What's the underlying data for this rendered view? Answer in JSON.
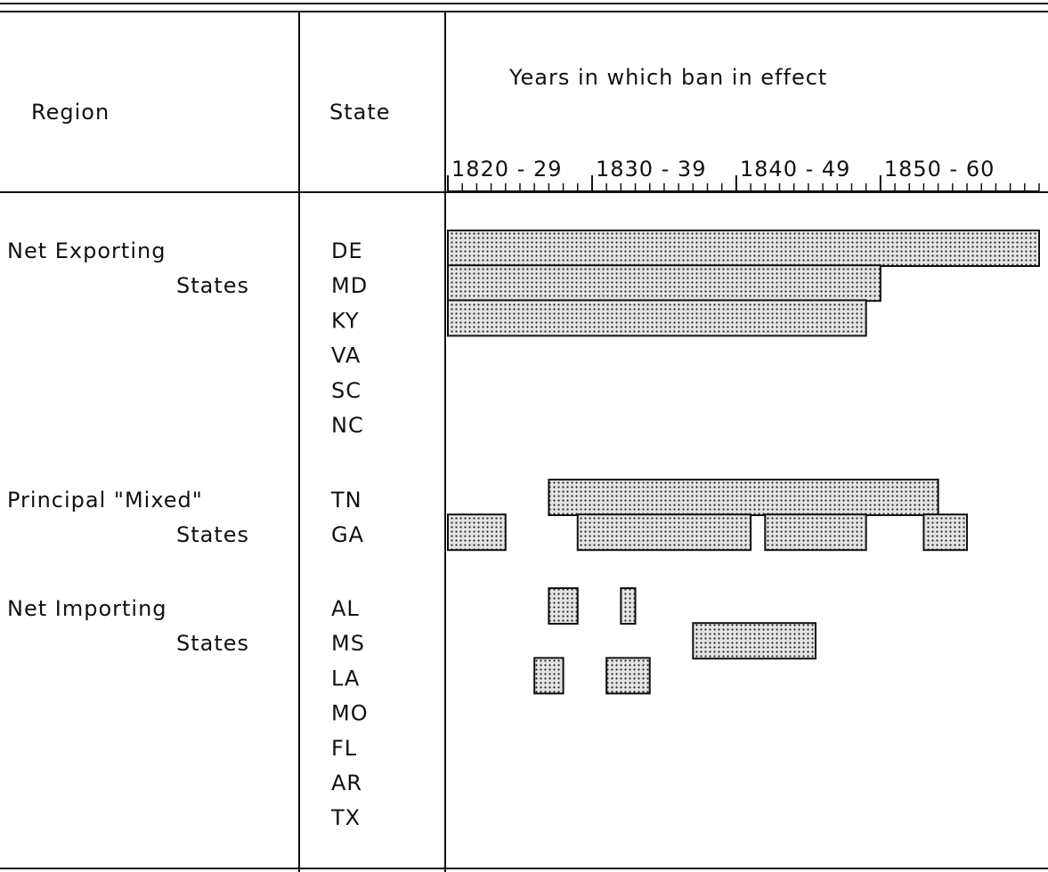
{
  "chart_data": {
    "type": "gantt",
    "column_headers": {
      "region": "Region",
      "state": "State",
      "years": "Years in which ban in effect"
    },
    "xlim": [
      1820,
      1861
    ],
    "xticks": [
      {
        "value": 1820,
        "label": "1820 - 29"
      },
      {
        "value": 1830,
        "label": "1830 - 39"
      },
      {
        "value": 1840,
        "label": "1840 - 49"
      },
      {
        "value": 1850,
        "label": "1850 - 60"
      }
    ],
    "minor_xticks": [
      1821,
      1822,
      1823,
      1824,
      1825,
      1826,
      1827,
      1828,
      1829,
      1831,
      1832,
      1833,
      1834,
      1835,
      1836,
      1837,
      1838,
      1839,
      1841,
      1842,
      1843,
      1844,
      1845,
      1846,
      1847,
      1848,
      1849,
      1851,
      1852,
      1853,
      1854,
      1855,
      1856,
      1857,
      1858,
      1859,
      1860,
      1861
    ],
    "groups": [
      {
        "region": [
          "Net Exporting",
          "States"
        ],
        "states": [
          {
            "name": "DE",
            "bans": [
              [
                1820,
                1861
              ]
            ]
          },
          {
            "name": "MD",
            "bans": [
              [
                1820,
                1850
              ]
            ]
          },
          {
            "name": "KY",
            "bans": [
              [
                1820,
                1849
              ]
            ]
          },
          {
            "name": "VA",
            "bans": []
          },
          {
            "name": "SC",
            "bans": []
          },
          {
            "name": "NC",
            "bans": []
          }
        ]
      },
      {
        "region": [
          "Principal \"Mixed\"",
          "States"
        ],
        "states": [
          {
            "name": "TN",
            "bans": [
              [
                1827,
                1854
              ]
            ]
          },
          {
            "name": "GA",
            "bans": [
              [
                1820,
                1824
              ],
              [
                1829,
                1841
              ],
              [
                1842,
                1849
              ],
              [
                1853,
                1856
              ]
            ]
          }
        ]
      },
      {
        "region": [
          "Net Importing",
          "States"
        ],
        "states": [
          {
            "name": "AL",
            "bans": [
              [
                1827,
                1829
              ],
              [
                1832,
                1833
              ]
            ]
          },
          {
            "name": "MS",
            "bans": [
              [
                1837,
                1845.5
              ]
            ]
          },
          {
            "name": "LA",
            "bans": [
              [
                1826,
                1828
              ],
              [
                1831,
                1834
              ]
            ]
          },
          {
            "name": "MO",
            "bans": []
          },
          {
            "name": "FL",
            "bans": []
          },
          {
            "name": "AR",
            "bans": []
          },
          {
            "name": "TX",
            "bans": []
          }
        ]
      }
    ]
  }
}
